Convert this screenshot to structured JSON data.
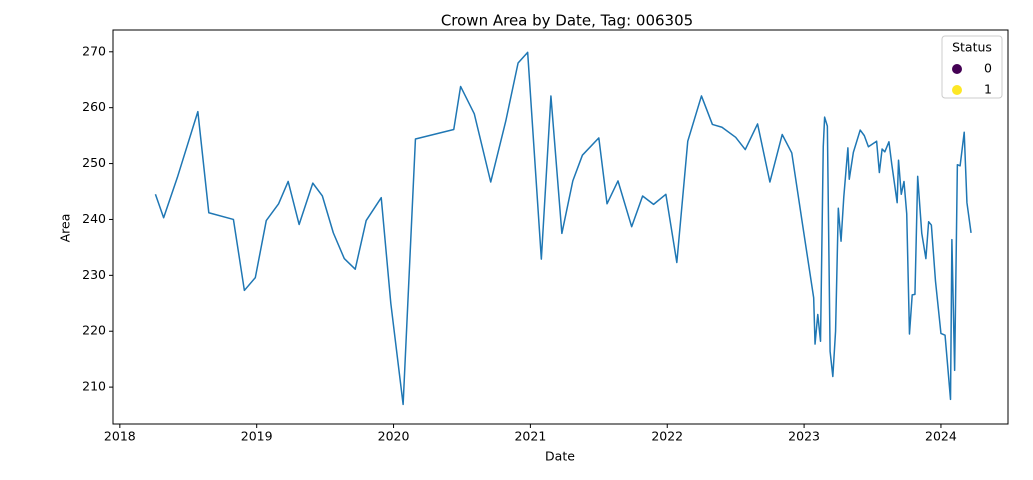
{
  "chart_data": {
    "type": "line",
    "title": "Crown Area by Date, Tag: 006305",
    "x_label": "Date",
    "y_label": "Area",
    "color": "#1f77b4",
    "grid": false,
    "xlim": [
      2017.95,
      2024.49
    ],
    "ylim": [
      203.4,
      273.9
    ],
    "xticks": [
      2018,
      2019,
      2020,
      2021,
      2022,
      2023,
      2024
    ],
    "yticks": [
      210,
      220,
      230,
      240,
      250,
      260,
      270
    ],
    "legend": {
      "title": "Status",
      "position": "upper right",
      "entries": [
        {
          "label": "0",
          "color": "#440154"
        },
        {
          "label": "1",
          "color": "#fde725"
        }
      ]
    },
    "x": [
      2018.26,
      2018.32,
      2018.42,
      2018.57,
      2018.65,
      2018.83,
      2018.91,
      2018.99,
      2019.07,
      2019.16,
      2019.23,
      2019.31,
      2019.41,
      2019.48,
      2019.56,
      2019.64,
      2019.72,
      2019.8,
      2019.91,
      2019.98,
      2020.07,
      2020.16,
      2020.44,
      2020.49,
      2020.59,
      2020.71,
      2020.82,
      2020.91,
      2020.98,
      2021.08,
      2021.15,
      2021.23,
      2021.31,
      2021.38,
      2021.5,
      2021.56,
      2021.64,
      2021.74,
      2021.82,
      2021.9,
      2021.99,
      2022.07,
      2022.15,
      2022.25,
      2022.33,
      2022.4,
      2022.5,
      2022.57,
      2022.66,
      2022.75,
      2022.84,
      2022.91,
      2022.99,
      2023.07,
      2023.08,
      2023.1,
      2023.12,
      2023.14,
      2023.15,
      2023.17,
      2023.19,
      2023.21,
      2023.23,
      2023.25,
      2023.27,
      2023.29,
      2023.32,
      2023.33,
      2023.36,
      2023.41,
      2023.44,
      2023.47,
      2023.53,
      2023.55,
      2023.57,
      2023.59,
      2023.62,
      2023.64,
      2023.68,
      2023.69,
      2023.71,
      2023.73,
      2023.75,
      2023.77,
      2023.79,
      2023.81,
      2023.83,
      2023.86,
      2023.89,
      2023.91,
      2023.93,
      2023.96,
      2024.0,
      2024.03,
      2024.07,
      2024.08,
      2024.1,
      2024.12,
      2024.14,
      2024.17,
      2024.19,
      2024.22
    ],
    "values": [
      244.5,
      240.3,
      247.5,
      259.3,
      241.2,
      240.0,
      227.3,
      229.6,
      239.8,
      242.8,
      246.8,
      239.1,
      246.5,
      244.2,
      237.6,
      233.0,
      231.1,
      239.8,
      243.9,
      225.0,
      206.9,
      254.4,
      256.1,
      263.8,
      258.9,
      246.7,
      257.6,
      268.0,
      269.9,
      232.9,
      262.1,
      237.5,
      246.9,
      251.5,
      254.6,
      242.8,
      246.9,
      238.7,
      244.2,
      242.7,
      244.5,
      232.3,
      254.0,
      262.1,
      257.0,
      256.5,
      254.7,
      252.5,
      257.1,
      246.7,
      255.2,
      251.9,
      238.9,
      226.0,
      217.7,
      223.0,
      218.2,
      253.0,
      258.3,
      256.7,
      216.4,
      211.9,
      220.0,
      242.0,
      236.1,
      244.0,
      252.8,
      247.2,
      252.0,
      256.0,
      255.0,
      253.0,
      254.0,
      248.4,
      252.6,
      252.1,
      253.9,
      250.0,
      243.0,
      250.6,
      244.5,
      246.8,
      241.0,
      219.5,
      226.5,
      226.6,
      247.7,
      237.5,
      233.0,
      239.6,
      239.0,
      229.0,
      219.6,
      219.3,
      207.8,
      236.4,
      213.0,
      249.8,
      249.6,
      255.6,
      243.0,
      237.6
    ]
  }
}
